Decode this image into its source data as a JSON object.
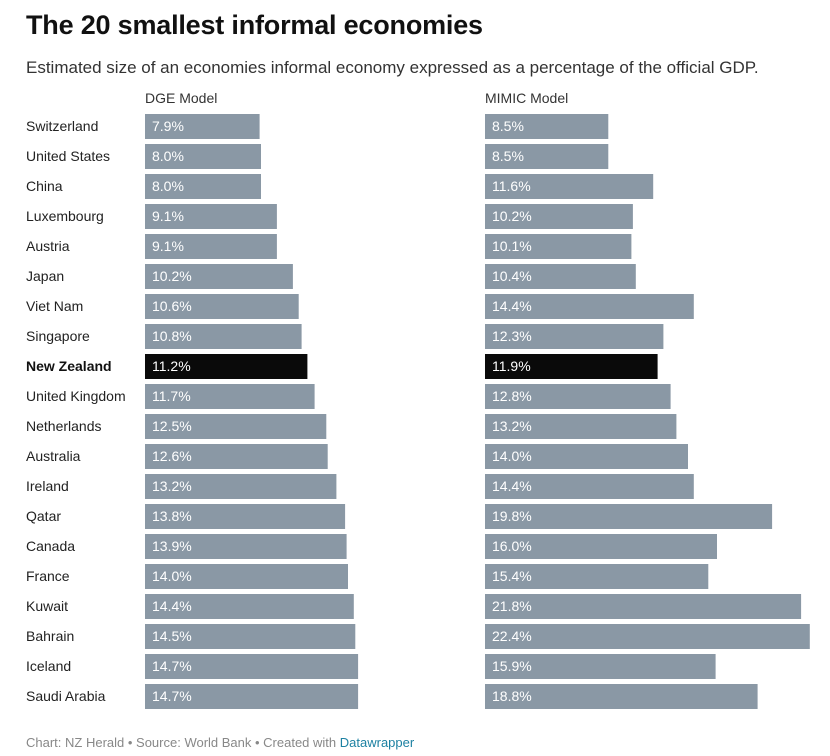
{
  "header": {
    "title": "The 20 smallest informal economies",
    "subtitle": "Estimated size of an economies informal economy expressed as a percentage of the official GDP."
  },
  "colors": {
    "bar": "#8a98a5",
    "highlight": "#0a0a0a"
  },
  "chart_data": {
    "type": "bar",
    "orientation": "horizontal",
    "title": "The 20 smallest informal economies",
    "subtitle": "Estimated size of an economies informal economy expressed as a percentage of the official GDP.",
    "categories": [
      "Switzerland",
      "United States",
      "China",
      "Luxembourg",
      "Austria",
      "Japan",
      "Viet Nam",
      "Singapore",
      "New Zealand",
      "United Kingdom",
      "Netherlands",
      "Australia",
      "Ireland",
      "Qatar",
      "Canada",
      "France",
      "Kuwait",
      "Bahrain",
      "Iceland",
      "Saudi Arabia"
    ],
    "highlight": "New Zealand",
    "unit": "%",
    "series": [
      {
        "name": "DGE Model",
        "values": [
          7.9,
          8.0,
          8.0,
          9.1,
          9.1,
          10.2,
          10.6,
          10.8,
          11.2,
          11.7,
          12.5,
          12.6,
          13.2,
          13.8,
          13.9,
          14.0,
          14.4,
          14.5,
          14.7,
          14.7
        ]
      },
      {
        "name": "MIMIC Model",
        "values": [
          8.5,
          8.5,
          11.6,
          10.2,
          10.1,
          10.4,
          14.4,
          12.3,
          11.9,
          12.8,
          13.2,
          14.0,
          14.4,
          19.8,
          16.0,
          15.4,
          21.8,
          22.4,
          15.9,
          18.8
        ]
      }
    ]
  },
  "footer": {
    "prefix": "Chart: NZ Herald • Source: World Bank • Created with ",
    "link": "Datawrapper"
  }
}
